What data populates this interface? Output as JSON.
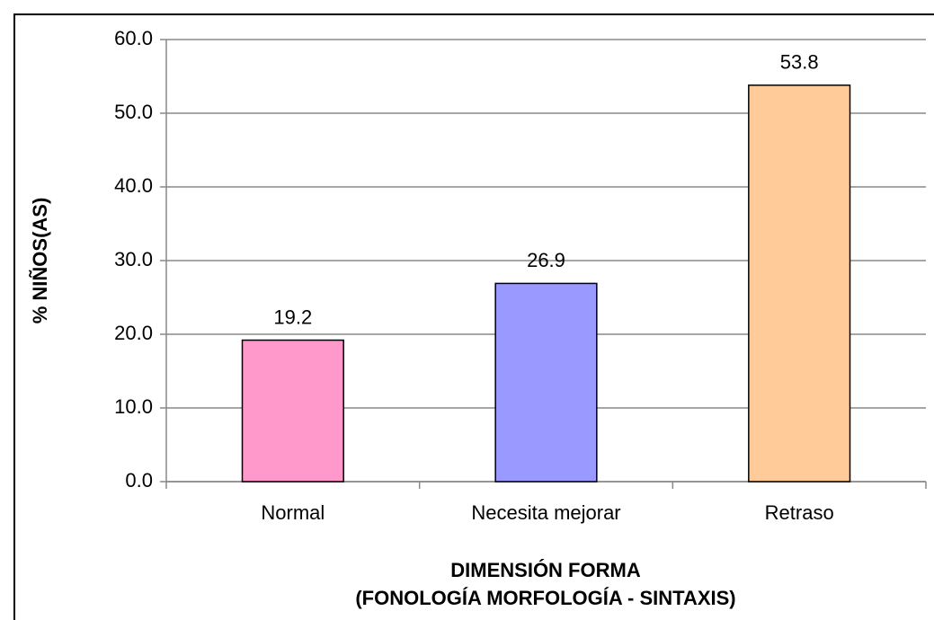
{
  "chart_data": {
    "type": "bar",
    "categories": [
      "Normal",
      "Necesita mejorar",
      "Retraso"
    ],
    "values": [
      19.2,
      26.9,
      53.8
    ],
    "colors": [
      "#ff99cc",
      "#9999ff",
      "#ffcc99"
    ],
    "ylabel": "% NIÑOS(AS)",
    "xlabel": [
      "DIMENSIÓN FORMA",
      "(FONOLOGÍA MORFOLOGÍA - SINTAXIS)"
    ],
    "ylim": [
      0,
      60
    ],
    "yticks": [
      {
        "value": 0,
        "label": "0.0"
      },
      {
        "value": 10,
        "label": "10.0"
      },
      {
        "value": 20,
        "label": "20.0"
      },
      {
        "value": 30,
        "label": "30.0"
      },
      {
        "value": 40,
        "label": "40.0"
      },
      {
        "value": 50,
        "label": "50.0"
      },
      {
        "value": 60,
        "label": "60.0"
      }
    ],
    "grid": true
  }
}
